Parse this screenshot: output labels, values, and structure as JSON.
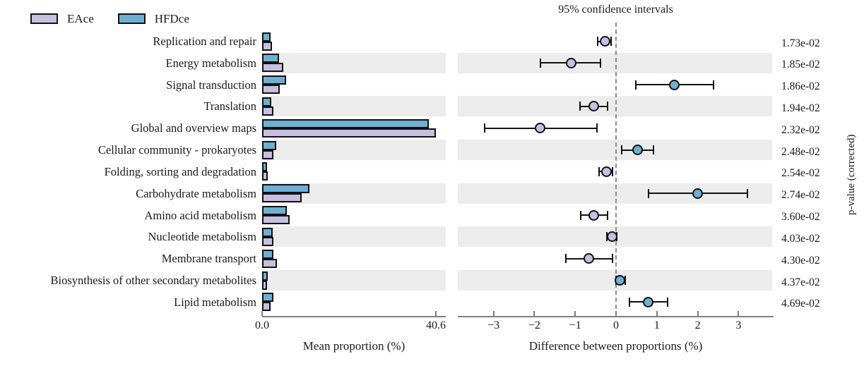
{
  "legend": {
    "items": [
      {
        "label": "EAce",
        "color": "#c6bfe0"
      },
      {
        "label": "HFDce",
        "color": "#6fafd2"
      }
    ]
  },
  "colors": {
    "eace": "#c6bfe0",
    "hfdce": "#6fafd2",
    "stripe": "#ececec",
    "axis": "#7f7f7f",
    "bar_border": "#111111"
  },
  "chart_data": {
    "type": "extended-error-bar",
    "title": "95% confidence intervals",
    "categories": [
      "Replication and repair",
      "Energy metabolism",
      "Signal transduction",
      "Translation",
      "Global and overview maps",
      "Cellular community - prokaryotes",
      "Folding, sorting and degradation",
      "Carbohydrate metabolism",
      "Amino acid metabolism",
      "Nucleotide metabolism",
      "Membrane transport",
      "Biosynthesis of other secondary metabolites",
      "Lipid metabolism"
    ],
    "mean_proportion": {
      "xlabel": "Mean proportion (%)",
      "xlim": [
        0,
        42.9
      ],
      "xticks": [
        {
          "label": "0.0",
          "value": 0
        },
        {
          "label": "40.6",
          "value": 40.6
        }
      ],
      "series": [
        {
          "name": "HFDce",
          "values": [
            2.0,
            4.0,
            5.6,
            2.2,
            38.9,
            3.3,
            1.1,
            11.1,
            5.8,
            2.5,
            2.7,
            1.4,
            2.7
          ]
        },
        {
          "name": "EAce",
          "values": [
            2.3,
            5.0,
            4.1,
            2.7,
            40.6,
            2.7,
            1.3,
            9.2,
            6.4,
            2.7,
            3.4,
            1.2,
            2.0
          ]
        }
      ]
    },
    "difference": {
      "xlabel": "Difference between proportions (%)",
      "xlim": [
        -3.85,
        3.85
      ],
      "xticks": [
        {
          "label": "−3",
          "value": -3
        },
        {
          "label": "−2",
          "value": -2
        },
        {
          "label": "−1",
          "value": -1
        },
        {
          "label": "0",
          "value": 0
        },
        {
          "label": "1",
          "value": 1
        },
        {
          "label": "2",
          "value": 2
        },
        {
          "label": "3",
          "value": 3
        }
      ],
      "points": [
        {
          "value": -0.26,
          "ci_low": -0.45,
          "ci_high": -0.12,
          "enriched": "EAce"
        },
        {
          "value": -1.1,
          "ci_low": -1.85,
          "ci_high": -0.38,
          "enriched": "EAce"
        },
        {
          "value": 1.43,
          "ci_low": 0.48,
          "ci_high": 2.38,
          "enriched": "HFDce"
        },
        {
          "value": -0.55,
          "ci_low": -0.88,
          "ci_high": -0.21,
          "enriched": "EAce"
        },
        {
          "value": -1.86,
          "ci_low": -3.22,
          "ci_high": -0.47,
          "enriched": "EAce"
        },
        {
          "value": 0.52,
          "ci_low": 0.13,
          "ci_high": 0.92,
          "enriched": "HFDce"
        },
        {
          "value": -0.24,
          "ci_low": -0.42,
          "ci_high": -0.09,
          "enriched": "EAce"
        },
        {
          "value": 2.0,
          "ci_low": 0.79,
          "ci_high": 3.21,
          "enriched": "HFDce"
        },
        {
          "value": -0.54,
          "ci_low": -0.87,
          "ci_high": -0.21,
          "enriched": "EAce"
        },
        {
          "value": -0.1,
          "ci_low": -0.22,
          "ci_high": 0.02,
          "enriched": "EAce"
        },
        {
          "value": -0.66,
          "ci_low": -1.22,
          "ci_high": -0.08,
          "enriched": "EAce"
        },
        {
          "value": 0.1,
          "ci_low": 0.0,
          "ci_high": 0.22,
          "enriched": "HFDce"
        },
        {
          "value": 0.78,
          "ci_low": 0.33,
          "ci_high": 1.26,
          "enriched": "HFDce"
        }
      ]
    },
    "p_values": {
      "label": "p-value (corrected)",
      "values": [
        "1.73e-02",
        "1.85e-02",
        "1.86e-02",
        "1.94e-02",
        "2.32e-02",
        "2.48e-02",
        "2.54e-02",
        "2.74e-02",
        "3.60e-02",
        "4.03e-02",
        "4.30e-02",
        "4.37e-02",
        "4.69e-02"
      ]
    }
  }
}
